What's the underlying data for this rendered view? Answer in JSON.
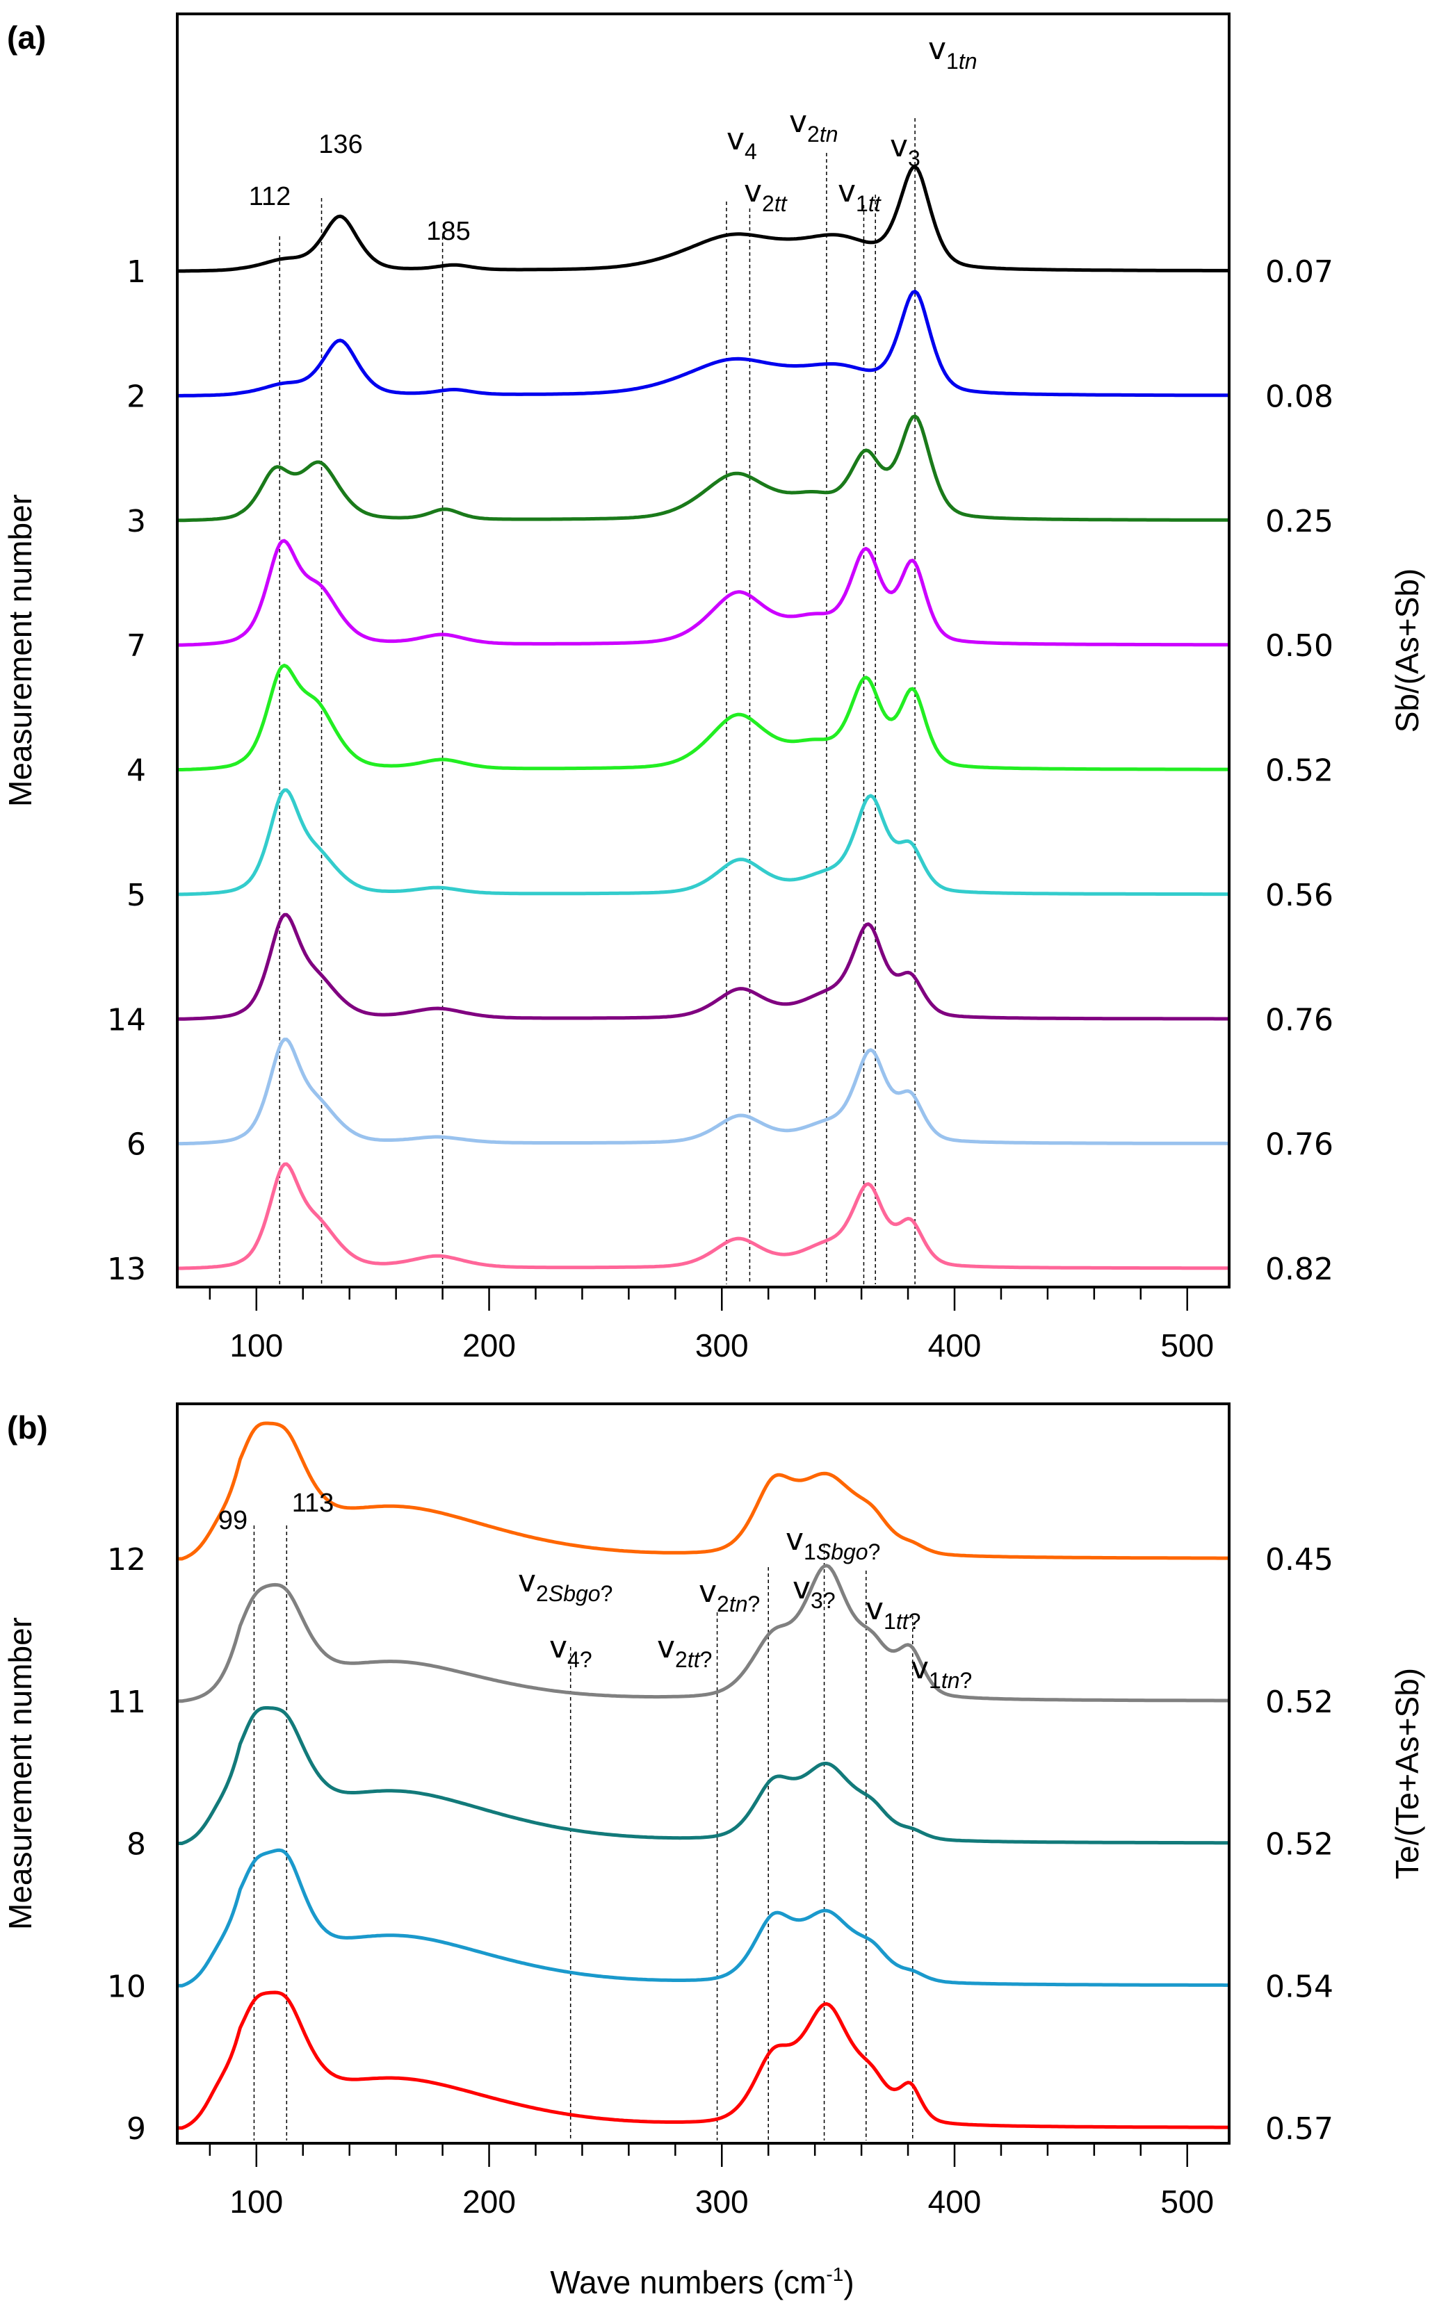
{
  "chart_data": [
    {
      "id": "a",
      "type": "line",
      "panel_label": "(a)",
      "title": "",
      "xlabel": "",
      "ylabel": "Measurement number",
      "y2label": "Sb/(As+Sb)",
      "xlim": [
        66,
        518
      ],
      "xticks_major": [
        100,
        200,
        300,
        400,
        500
      ],
      "xticks_minor_step": 20,
      "grid": false,
      "legend": "none",
      "stacked_offset": true,
      "series": [
        {
          "name": "1",
          "ratio": "0.07",
          "color": "#000000",
          "peaks": [
            [
              112,
              0.1,
              10
            ],
            [
              136,
              0.55,
              8
            ],
            [
              185,
              0.05,
              8
            ],
            [
              305,
              0.35,
              22
            ],
            [
              350,
              0.3,
              18
            ],
            [
              383,
              1.0,
              7
            ]
          ]
        },
        {
          "name": "2",
          "ratio": "0.08",
          "color": "#0000ee",
          "peaks": [
            [
              112,
              0.1,
              10
            ],
            [
              136,
              0.55,
              8
            ],
            [
              185,
              0.05,
              8
            ],
            [
              305,
              0.35,
              22
            ],
            [
              350,
              0.25,
              18
            ],
            [
              383,
              1.0,
              7
            ]
          ]
        },
        {
          "name": "3",
          "ratio": "0.25",
          "color": "#1a7a1a",
          "peaks": [
            [
              108,
              0.45,
              7
            ],
            [
              127,
              0.55,
              9
            ],
            [
              181,
              0.1,
              7
            ],
            [
              306,
              0.45,
              15
            ],
            [
              340,
              0.2,
              12
            ],
            [
              362,
              0.6,
              7
            ],
            [
              383,
              1.0,
              7
            ]
          ]
        },
        {
          "name": "7",
          "ratio": "0.50",
          "color": "#cc00ff",
          "peaks": [
            [
              111,
              1.0,
              7
            ],
            [
              127,
              0.55,
              9
            ],
            [
              180,
              0.1,
              10
            ],
            [
              307,
              0.55,
              13
            ],
            [
              340,
              0.25,
              12
            ],
            [
              362,
              0.95,
              7
            ],
            [
              382,
              0.85,
              6
            ]
          ]
        },
        {
          "name": "4",
          "ratio": "0.52",
          "color": "#22ee22",
          "peaks": [
            [
              111,
              1.0,
              7
            ],
            [
              126,
              0.65,
              9
            ],
            [
              180,
              0.1,
              10
            ],
            [
              307,
              0.6,
              13
            ],
            [
              340,
              0.25,
              12
            ],
            [
              362,
              0.95,
              7
            ],
            [
              382,
              0.85,
              6
            ]
          ]
        },
        {
          "name": "5",
          "ratio": "0.56",
          "color": "#33cccc",
          "peaks": [
            [
              112,
              1.0,
              7
            ],
            [
              127,
              0.35,
              9
            ],
            [
              178,
              0.06,
              10
            ],
            [
              308,
              0.35,
              11
            ],
            [
              345,
              0.18,
              12
            ],
            [
              364,
              0.95,
              7
            ],
            [
              381,
              0.45,
              6
            ]
          ]
        },
        {
          "name": "14",
          "ratio": "0.76",
          "color": "#800080",
          "peaks": [
            [
              112,
              1.0,
              7
            ],
            [
              127,
              0.35,
              9
            ],
            [
              178,
              0.1,
              12
            ],
            [
              308,
              0.3,
              11
            ],
            [
              345,
              0.22,
              12
            ],
            [
              363,
              0.9,
              7
            ],
            [
              381,
              0.4,
              6
            ]
          ]
        },
        {
          "name": "6",
          "ratio": "0.76",
          "color": "#99c2ee",
          "peaks": [
            [
              112,
              1.0,
              7
            ],
            [
              127,
              0.35,
              9
            ],
            [
              178,
              0.06,
              12
            ],
            [
              308,
              0.28,
              11
            ],
            [
              345,
              0.18,
              12
            ],
            [
              364,
              0.9,
              7
            ],
            [
              381,
              0.45,
              6
            ]
          ]
        },
        {
          "name": "13",
          "ratio": "0.82",
          "color": "#ff6699",
          "peaks": [
            [
              112,
              1.0,
              7
            ],
            [
              127,
              0.4,
              9
            ],
            [
              178,
              0.12,
              12
            ],
            [
              307,
              0.3,
              11
            ],
            [
              345,
              0.22,
              12
            ],
            [
              363,
              0.8,
              7
            ],
            [
              381,
              0.45,
              6
            ]
          ]
        }
      ],
      "annotations": [
        {
          "text": "112",
          "x": 112
        },
        {
          "text": "136",
          "x": 136
        },
        {
          "text": "185",
          "x": 185
        },
        {
          "nu": "v",
          "sub": "4",
          "sub_italic": "",
          "x": 302
        },
        {
          "nu": "v",
          "sub": "2",
          "sub_italic": "tt",
          "x": 312
        },
        {
          "nu": "v",
          "sub": "2",
          "sub_italic": "tn",
          "x": 345
        },
        {
          "nu": "v",
          "sub": "1",
          "sub_italic": "tt",
          "x": 362
        },
        {
          "nu": "v",
          "sub": "3",
          "sub_italic": "",
          "x": 370
        },
        {
          "nu": "v",
          "sub": "1",
          "sub_italic": "tn",
          "x": 384
        }
      ],
      "reference_lines": [
        110,
        128,
        180,
        302,
        312,
        345,
        361,
        366,
        383
      ]
    },
    {
      "id": "b",
      "type": "line",
      "panel_label": "(b)",
      "title": "",
      "xlabel": "Wave numbers (cm-1)",
      "ylabel": "Measurement number",
      "y2label": "Te/(Te+As+Sb)",
      "xlim": [
        66,
        518
      ],
      "xticks_major": [
        100,
        200,
        300,
        400,
        500
      ],
      "xticks_minor_step": 20,
      "grid": false,
      "legend": "none",
      "stacked_offset": true,
      "series": [
        {
          "name": "12",
          "ratio": "0.45",
          "color": "#ff6600",
          "peaks": [
            [
              82,
              0.35,
              8
            ],
            [
              99,
              0.85,
              9
            ],
            [
              113,
              0.85,
              10
            ],
            [
              160,
              0.55,
              45
            ],
            [
              322,
              0.65,
              9
            ],
            [
              345,
              0.85,
              14
            ],
            [
              365,
              0.25,
              8
            ],
            [
              382,
              0.08,
              6
            ]
          ]
        },
        {
          "name": "11",
          "ratio": "0.52",
          "color": "#808080",
          "peaks": [
            [
              99,
              0.55,
              10
            ],
            [
              113,
              0.55,
              10
            ],
            [
              160,
              0.3,
              40
            ],
            [
              322,
              0.45,
              10
            ],
            [
              345,
              1.0,
              10
            ],
            [
              365,
              0.35,
              8
            ],
            [
              381,
              0.35,
              6
            ]
          ]
        },
        {
          "name": "8",
          "ratio": "0.52",
          "color": "#127a7a",
          "peaks": [
            [
              82,
              0.35,
              8
            ],
            [
              99,
              0.85,
              9
            ],
            [
              113,
              0.85,
              10
            ],
            [
              160,
              0.55,
              45
            ],
            [
              322,
              0.55,
              9
            ],
            [
              345,
              0.8,
              12
            ],
            [
              365,
              0.25,
              8
            ],
            [
              382,
              0.08,
              6
            ]
          ]
        },
        {
          "name": "10",
          "ratio": "0.54",
          "color": "#1a99cc",
          "peaks": [
            [
              82,
              0.35,
              8
            ],
            [
              99,
              0.8,
              9
            ],
            [
              113,
              0.85,
              9
            ],
            [
              160,
              0.5,
              45
            ],
            [
              322,
              0.6,
              9
            ],
            [
              345,
              0.7,
              12
            ],
            [
              365,
              0.25,
              8
            ],
            [
              382,
              0.08,
              6
            ]
          ]
        },
        {
          "name": "9",
          "ratio": "0.57",
          "color": "#ff0000",
          "peaks": [
            [
              82,
              0.3,
              8
            ],
            [
              99,
              0.55,
              9
            ],
            [
              113,
              0.6,
              10
            ],
            [
              160,
              0.35,
              45
            ],
            [
              322,
              0.45,
              9
            ],
            [
              345,
              0.85,
              11
            ],
            [
              365,
              0.25,
              8
            ],
            [
              381,
              0.25,
              5
            ]
          ]
        }
      ],
      "annotations": [
        {
          "text": "99",
          "x": 99
        },
        {
          "text": "113",
          "x": 113
        },
        {
          "nu": "v",
          "sub": "2",
          "sub_italic": "Sbgo",
          "suffix": "?",
          "x": 240
        },
        {
          "nu": "v",
          "sub": "4",
          "sub_italic": "",
          "suffix": "?",
          "x": 240
        },
        {
          "nu": "v",
          "sub": "2",
          "sub_italic": "tt",
          "suffix": "?",
          "x": 298
        },
        {
          "nu": "v",
          "sub": "2",
          "sub_italic": "tn",
          "suffix": "?",
          "x": 320
        },
        {
          "nu": "v",
          "sub": "1",
          "sub_italic": "Sbgo",
          "suffix": "?",
          "x": 345
        },
        {
          "nu": "v",
          "sub": "3",
          "sub_italic": "",
          "suffix": "?",
          "x": 345
        },
        {
          "nu": "v",
          "sub": "1",
          "sub_italic": "tt",
          "suffix": "?",
          "x": 362
        },
        {
          "nu": "v",
          "sub": "1",
          "sub_italic": "tn",
          "suffix": "?",
          "x": 383
        }
      ],
      "reference_lines": [
        99,
        113,
        235,
        298,
        320,
        344,
        362,
        382
      ]
    }
  ]
}
